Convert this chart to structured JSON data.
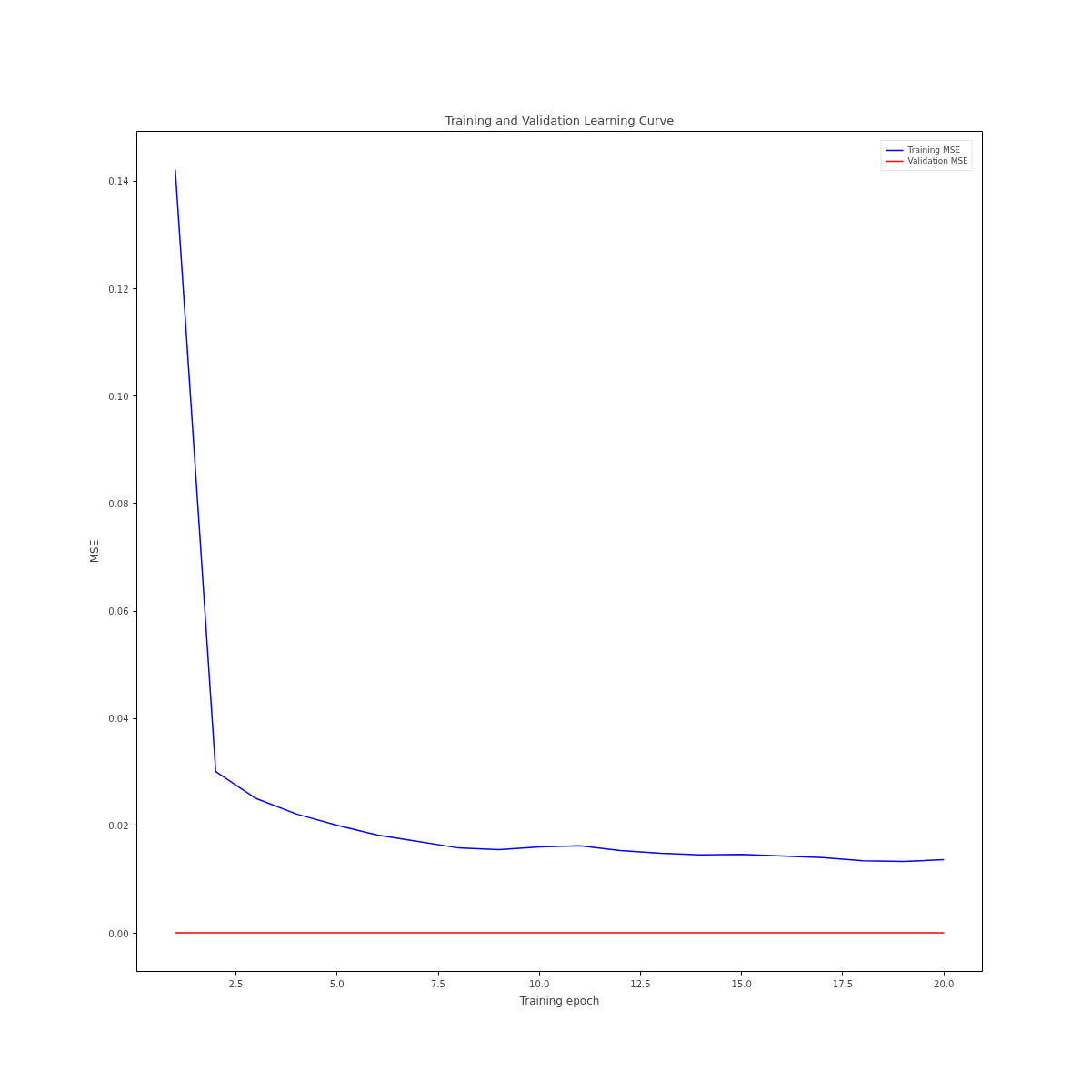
{
  "chart_data": {
    "type": "line",
    "title": "Training and Validation Learning Curve",
    "xlabel": "Training epoch",
    "ylabel": "MSE",
    "x": [
      1,
      2,
      3,
      4,
      5,
      6,
      7,
      8,
      9,
      10,
      11,
      12,
      13,
      14,
      15,
      16,
      17,
      18,
      19,
      20
    ],
    "series": [
      {
        "name": "Training MSE",
        "color": "#0000ff",
        "values": [
          0.1422,
          0.0301,
          0.0251,
          0.0222,
          0.0201,
          0.0183,
          0.0171,
          0.0159,
          0.0156,
          0.0161,
          0.0163,
          0.0154,
          0.0149,
          0.0146,
          0.0147,
          0.0144,
          0.0141,
          0.0135,
          0.0134,
          0.0137
        ]
      },
      {
        "name": "Validation MSE",
        "color": "#ff0000",
        "values": [
          0.0001,
          0.0001,
          0.0001,
          0.0001,
          0.0001,
          0.0001,
          0.0001,
          0.0001,
          0.0001,
          0.0001,
          0.0001,
          0.0001,
          0.0001,
          0.0001,
          0.0001,
          0.0001,
          0.0001,
          0.0001,
          0.0001,
          0.0001
        ]
      }
    ],
    "xlim": [
      0.05,
      20.95
    ],
    "ylim": [
      -0.0071,
      0.1493
    ],
    "xticks": [
      {
        "value": 2.5,
        "label": "2.5"
      },
      {
        "value": 5,
        "label": "5.0"
      },
      {
        "value": 7.5,
        "label": "7.5"
      },
      {
        "value": 10,
        "label": "10.0"
      },
      {
        "value": 12.5,
        "label": "12.5"
      },
      {
        "value": 15,
        "label": "15.0"
      },
      {
        "value": 17.5,
        "label": "17.5"
      },
      {
        "value": 20,
        "label": "20.0"
      }
    ],
    "yticks": [
      {
        "value": 0,
        "label": "0.00"
      },
      {
        "value": 0.02,
        "label": "0.02"
      },
      {
        "value": 0.04,
        "label": "0.04"
      },
      {
        "value": 0.06,
        "label": "0.06"
      },
      {
        "value": 0.08,
        "label": "0.08"
      },
      {
        "value": 0.1,
        "label": "0.10"
      },
      {
        "value": 0.12,
        "label": "0.12"
      },
      {
        "value": 0.14,
        "label": "0.14"
      }
    ],
    "grid": false,
    "legend": "top right",
    "line_style": "solid"
  }
}
